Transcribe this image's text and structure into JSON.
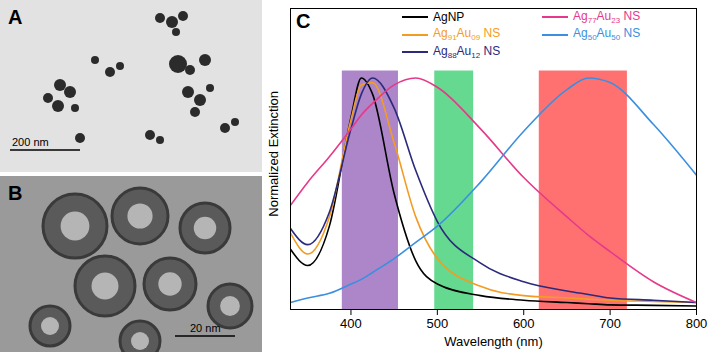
{
  "panels": [
    {
      "label": "A",
      "scale_bar": "200 nm"
    },
    {
      "label": "B",
      "scale_bar": "20 nm"
    }
  ],
  "chart_data": {
    "type": "line",
    "panel_label": "C",
    "x_label": "Wavelength (nm)",
    "y_label": "Normalized Extinction",
    "x": [
      330,
      350,
      375,
      400,
      412,
      425,
      450,
      475,
      500,
      550,
      600,
      650,
      675,
      700,
      750,
      800
    ],
    "series": [
      {
        "name": "AgNP",
        "color": "#000000",
        "values": [
          0.26,
          0.19,
          0.36,
          0.83,
          1.0,
          0.93,
          0.5,
          0.21,
          0.11,
          0.06,
          0.04,
          0.03,
          0.025,
          0.02,
          0.018,
          0.015
        ]
      },
      {
        "name": "Ag91Au09 NS",
        "color": "#f39c24",
        "values": [
          0.33,
          0.24,
          0.4,
          0.82,
          0.97,
          0.98,
          0.72,
          0.4,
          0.22,
          0.1,
          0.06,
          0.05,
          0.045,
          0.04,
          0.035,
          0.03
        ]
      },
      {
        "name": "Ag88Au12 NS",
        "color": "#2b2a7c",
        "values": [
          0.35,
          0.28,
          0.42,
          0.78,
          0.93,
          1.0,
          0.87,
          0.6,
          0.38,
          0.2,
          0.12,
          0.08,
          0.065,
          0.05,
          0.04,
          0.03
        ]
      },
      {
        "name": "Ag77Au23 NS",
        "color": "#e6398a",
        "values": [
          0.45,
          0.55,
          0.66,
          0.78,
          0.84,
          0.89,
          0.97,
          1.0,
          0.96,
          0.78,
          0.57,
          0.4,
          0.32,
          0.25,
          0.12,
          0.03
        ]
      },
      {
        "name": "Ag50Au50 NS",
        "color": "#3b8fe0",
        "values": [
          0.03,
          0.05,
          0.07,
          0.11,
          0.13,
          0.16,
          0.22,
          0.29,
          0.36,
          0.55,
          0.77,
          0.95,
          1.0,
          0.98,
          0.8,
          0.58
        ]
      }
    ],
    "bands": [
      {
        "x1": 390,
        "x2": 455,
        "y1": 0,
        "y2": 1.03,
        "color": "#9966bb"
      },
      {
        "x1": 497,
        "x2": 542,
        "y1": 0,
        "y2": 1.03,
        "color": "#3fcf73"
      },
      {
        "x1": 618,
        "x2": 720,
        "y1": 0,
        "y2": 1.03,
        "color": "#ff4d4d"
      }
    ],
    "xlim": [
      330,
      800
    ],
    "xticks": [
      400,
      500,
      600,
      700,
      800
    ],
    "ylim": [
      0,
      1.3
    ],
    "tick_labels": "x",
    "legend": "top"
  }
}
